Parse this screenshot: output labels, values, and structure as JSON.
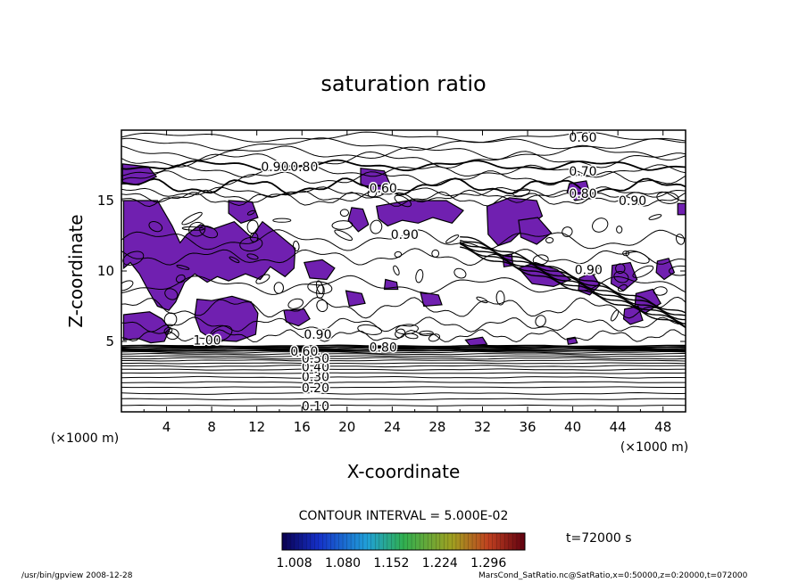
{
  "chart_data": {
    "type": "heatmap",
    "title": "saturation ratio",
    "xlabel": "X-coordinate",
    "ylabel": "Z-coordinate",
    "x_unit": "(×1000 m)",
    "y_unit": "(×1000 m)",
    "xlim": [
      0,
      50
    ],
    "ylim": [
      0,
      20
    ],
    "x_ticks": [
      4,
      8,
      12,
      16,
      20,
      24,
      28,
      32,
      36,
      40,
      44,
      48
    ],
    "y_ticks": [
      5,
      10,
      15
    ],
    "contour_labels": [
      {
        "text": "0.10",
        "x": 17.2,
        "z": 0.4
      },
      {
        "text": "0.20",
        "x": 17.2,
        "z": 1.7
      },
      {
        "text": "0.30",
        "x": 17.2,
        "z": 2.5
      },
      {
        "text": "0.40",
        "x": 17.2,
        "z": 3.2
      },
      {
        "text": "0.50",
        "x": 17.2,
        "z": 3.8
      },
      {
        "text": "0.60",
        "x": 16.2,
        "z": 4.3
      },
      {
        "text": "1.00",
        "x": 7.6,
        "z": 5.1
      },
      {
        "text": "0.90",
        "x": 17.4,
        "z": 5.5
      },
      {
        "text": "0.80",
        "x": 23.2,
        "z": 4.6
      },
      {
        "text": "0.90",
        "x": 25.1,
        "z": 12.6
      },
      {
        "text": "0.90",
        "x": 41.4,
        "z": 10.1
      },
      {
        "text": "0.60",
        "x": 23.2,
        "z": 15.9
      },
      {
        "text": "0.90",
        "x": 13.6,
        "z": 17.4
      },
      {
        "text": "0.80",
        "x": 16.2,
        "z": 17.4
      },
      {
        "text": "0.70",
        "x": 40.9,
        "z": 17.1
      },
      {
        "text": "0.80",
        "x": 40.9,
        "z": 15.5
      },
      {
        "text": "0.90",
        "x": 45.3,
        "z": 15.0
      },
      {
        "text": "0.60",
        "x": 40.9,
        "z": 19.5
      }
    ],
    "contour_interval": "CONTOUR INTERVAL = 5.000E-02",
    "colorbar": {
      "ticks": [
        1.008,
        1.08,
        1.152,
        1.224,
        1.296
      ],
      "tick_labels": [
        "1.008",
        "1.080",
        "1.152",
        "1.224",
        "1.296"
      ],
      "colormap": "rainbow (dark blue to dark red)",
      "supersaturated_fill": "#7020b0"
    },
    "time_label": "t=72000 s"
  },
  "footer": {
    "left": "/usr/bin/gpview   2008-12-28",
    "right": "MarsCond_SatRatio.nc@SatRatio,x=0:50000,z=0:20000,t=072000"
  }
}
